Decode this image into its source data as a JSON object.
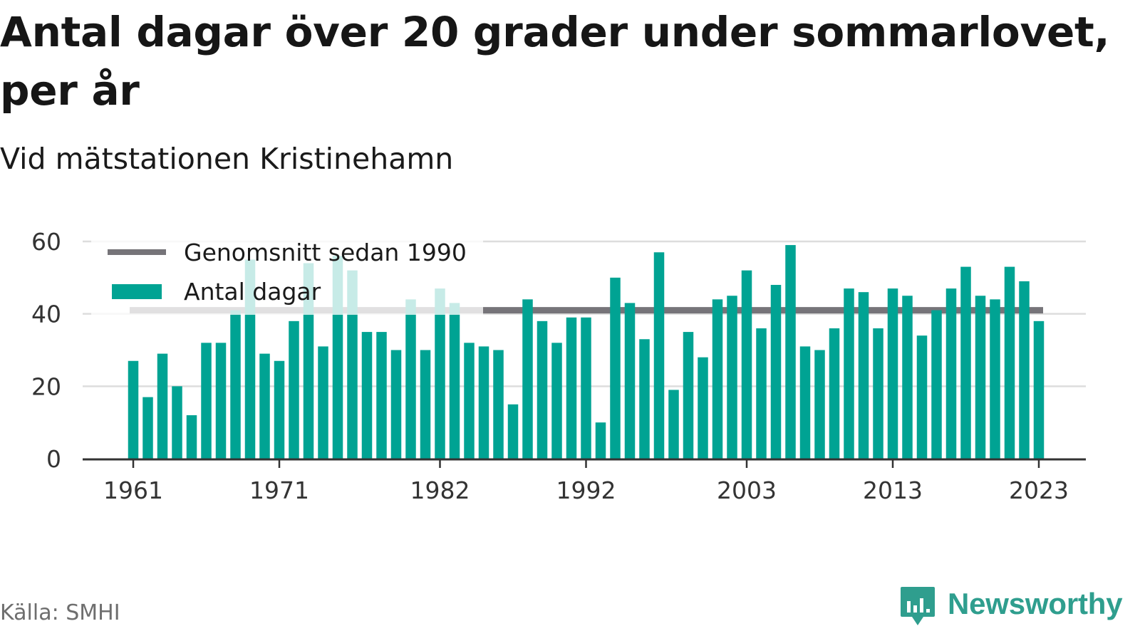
{
  "title": "Antal dagar över 20 grader under sommarlovet, per år",
  "subtitle": "Vid mätstationen Kristinehamn",
  "source": "Källa: SMHI",
  "brand": {
    "name": "Newsworthy",
    "icon": "newsworthy-logo-icon",
    "color": "#2f9e8e"
  },
  "colors": {
    "bars": "#00a393",
    "average_line": "#767479",
    "grid": "#dddddd",
    "axis": "#333333"
  },
  "chart_data": {
    "type": "bar",
    "title": "Antal dagar över 20 grader under sommarlovet, per år",
    "subtitle": "Vid mätstationen Kristinehamn",
    "xlabel": "",
    "ylabel": "",
    "ylim": [
      0,
      60
    ],
    "yticks": [
      0,
      20,
      40,
      60
    ],
    "xticks": [
      1961,
      1971,
      1982,
      1992,
      2003,
      2013,
      2023
    ],
    "grid": true,
    "legend_position": "top-left",
    "x": [
      1961,
      1962,
      1963,
      1964,
      1965,
      1966,
      1967,
      1968,
      1969,
      1970,
      1971,
      1972,
      1973,
      1974,
      1975,
      1976,
      1977,
      1978,
      1979,
      1980,
      1981,
      1982,
      1983,
      1984,
      1985,
      1986,
      1987,
      1988,
      1989,
      1990,
      1991,
      1992,
      1993,
      1994,
      1995,
      1996,
      1997,
      1998,
      1999,
      2000,
      2001,
      2002,
      2003,
      2004,
      2005,
      2006,
      2007,
      2008,
      2009,
      2010,
      2011,
      2012,
      2013,
      2014,
      2015,
      2016,
      2017,
      2018,
      2019,
      2020,
      2021,
      2022,
      2023
    ],
    "series": [
      {
        "name": "Antal dagar",
        "type": "bar",
        "color": "#00a393",
        "values": [
          27,
          17,
          29,
          20,
          12,
          32,
          32,
          41,
          55,
          29,
          27,
          38,
          54,
          31,
          56,
          52,
          35,
          35,
          30,
          44,
          30,
          47,
          43,
          32,
          31,
          30,
          15,
          44,
          38,
          32,
          39,
          39,
          10,
          50,
          43,
          33,
          57,
          19,
          35,
          28,
          44,
          45,
          52,
          36,
          48,
          59,
          31,
          30,
          36,
          47,
          46,
          36,
          47,
          45,
          34,
          41,
          47,
          53,
          45,
          44,
          53,
          49,
          38
        ]
      },
      {
        "name": "Genomsnitt sedan 1990",
        "type": "line",
        "color": "#767479",
        "value": 41
      }
    ]
  }
}
